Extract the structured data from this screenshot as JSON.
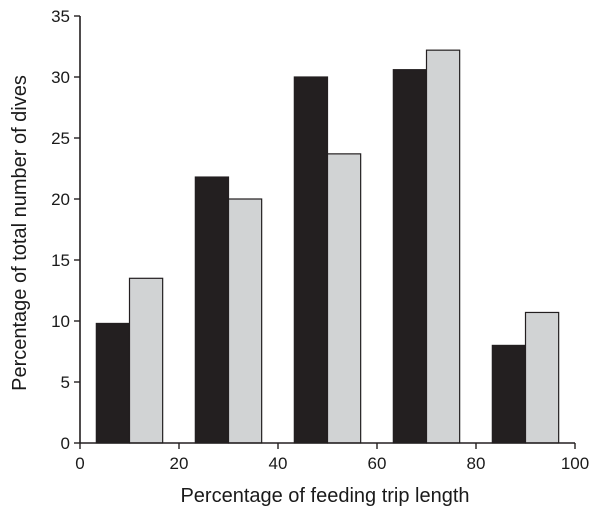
{
  "chart_data": {
    "type": "bar",
    "title": "",
    "xlabel": "Percentage of feeding trip length",
    "ylabel": "Percentage of total number of dives",
    "xlim": [
      0,
      100
    ],
    "ylim": [
      0,
      35
    ],
    "x_ticks": [
      "0",
      "20",
      "40",
      "60",
      "80",
      "100"
    ],
    "y_ticks": [
      "0",
      "5",
      "10",
      "15",
      "20",
      "25",
      "30",
      "35"
    ],
    "grid": false,
    "legend": "none",
    "bin_centers": [
      10,
      30,
      50,
      70,
      90
    ],
    "bar_width": 6.7,
    "series": [
      {
        "color": "#231f20",
        "offset": -3.35,
        "values": [
          9.8,
          21.8,
          30.0,
          30.6,
          8.0
        ]
      },
      {
        "color": "#d1d3d4",
        "offset": 3.35,
        "values": [
          13.5,
          20.0,
          23.7,
          32.2,
          10.7
        ]
      }
    ]
  }
}
